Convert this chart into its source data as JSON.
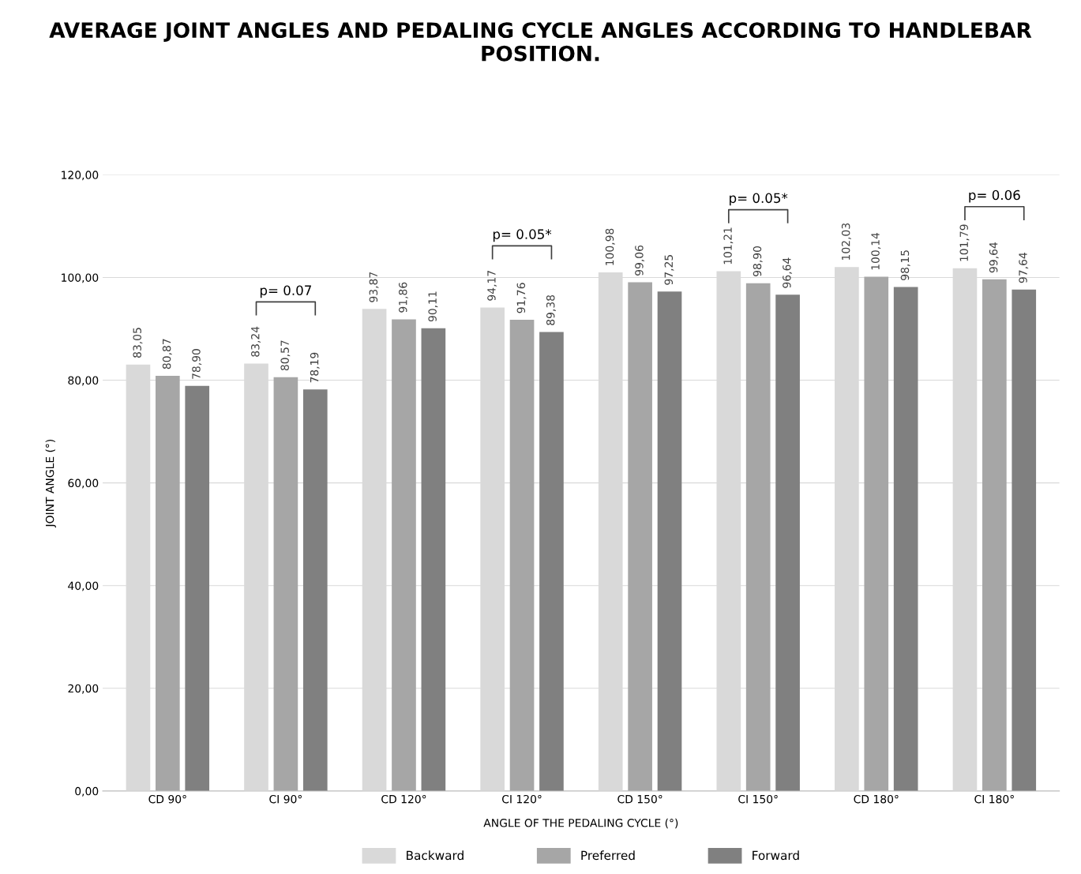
{
  "chart_data": {
    "type": "bar",
    "title": "AVERAGE JOINT ANGLES AND PEDALING CYCLE ANGLES ACCORDING TO HANDLEBAR POSITION.",
    "xlabel": "ANGLE OF THE PEDALING CYCLE (°)",
    "ylabel": "JOINT ANGLE (°)",
    "categories": [
      "CD 90°",
      "CI 90°",
      "CD 120°",
      "CI 120°",
      "CD 150°",
      "CI 150°",
      "CD 180°",
      "CI 180°"
    ],
    "series": [
      {
        "name": "Backward",
        "color": "#d9d9d9",
        "values": [
          83.05,
          83.24,
          93.87,
          94.17,
          100.98,
          101.21,
          102.03,
          101.79
        ],
        "value_labels": [
          "83,05",
          "83,24",
          "93,87",
          "94,17",
          "100,98",
          "101,21",
          "102,03",
          "101,79"
        ]
      },
      {
        "name": "Preferred",
        "color": "#a6a6a6",
        "values": [
          80.87,
          80.57,
          91.86,
          91.76,
          99.06,
          98.9,
          100.14,
          99.64
        ],
        "value_labels": [
          "80,87",
          "80,57",
          "91,86",
          "91,76",
          "99,06",
          "98,90",
          "100,14",
          "99,64"
        ]
      },
      {
        "name": "Forward",
        "color": "#808080",
        "values": [
          78.9,
          78.19,
          90.11,
          89.38,
          97.25,
          96.64,
          98.15,
          97.64
        ],
        "value_labels": [
          "78,90",
          "78,19",
          "90,11",
          "89,38",
          "97,25",
          "96,64",
          "98,15",
          "97,64"
        ]
      }
    ],
    "ylim": [
      0,
      120
    ],
    "yticks": [
      {
        "value": 0,
        "label": "0,00"
      },
      {
        "value": 20,
        "label": "20,00"
      },
      {
        "value": 40,
        "label": "40,00"
      },
      {
        "value": 60,
        "label": "60,00"
      },
      {
        "value": 80,
        "label": "80,00"
      },
      {
        "value": 100,
        "label": "100,00"
      },
      {
        "value": 120,
        "label": "120,00"
      }
    ],
    "grid": "y",
    "legend": "bottom",
    "annotations": [
      "p= 0.07",
      "p= 0.05*",
      "p= 0.05*",
      "p= 0.06"
    ]
  }
}
